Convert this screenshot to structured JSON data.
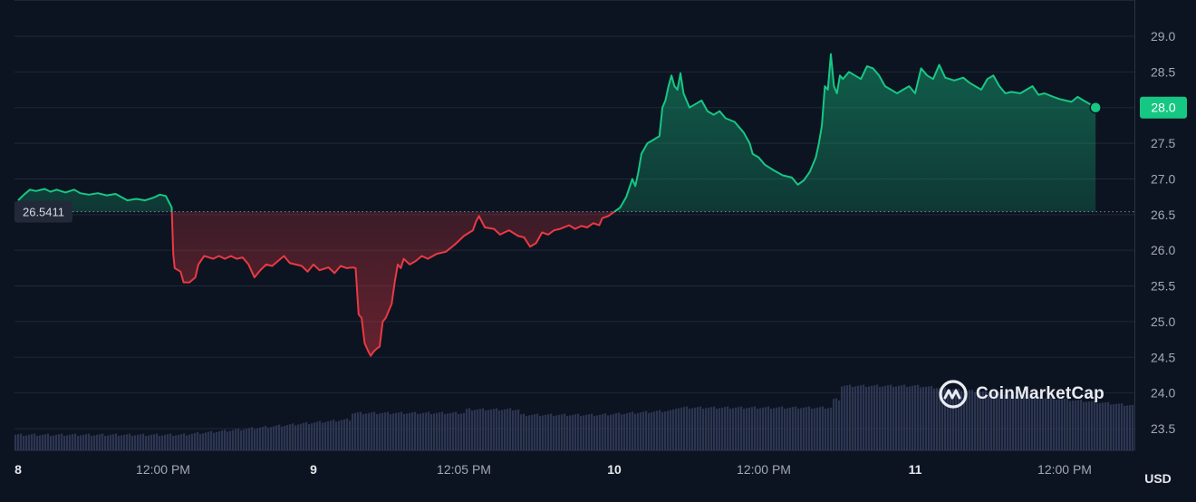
{
  "brand": {
    "name": "CoinMarketCap"
  },
  "currency_label": "USD",
  "colors": {
    "background": "#0d1421",
    "up": "#16c784",
    "down": "#ea3943",
    "grid": "#1f2637",
    "volume": "#323c5a",
    "axis_text": "#a1a7bb"
  },
  "chart_data": {
    "type": "area",
    "reference_value": "26.5411",
    "current_value": "28.0",
    "ylim": [
      23.2,
      29.3
    ],
    "y_ticks": [
      "29.0",
      "28.5",
      "28.0",
      "27.5",
      "27.0",
      "26.5",
      "26.0",
      "25.5",
      "25.0",
      "24.5",
      "24.0",
      "23.5"
    ],
    "x_tick_labels": [
      "8",
      "12:00 PM",
      "9",
      "12:05 PM",
      "10",
      "12:00 PM",
      "11",
      "12:00 PM"
    ],
    "grid": true,
    "series": [
      {
        "values": [
          [
            0.0,
            26.7
          ],
          [
            0.02,
            26.78
          ],
          [
            0.04,
            26.85
          ],
          [
            0.06,
            26.83
          ],
          [
            0.09,
            26.86
          ],
          [
            0.11,
            26.82
          ],
          [
            0.13,
            26.85
          ],
          [
            0.16,
            26.81
          ],
          [
            0.19,
            26.85
          ],
          [
            0.21,
            26.8
          ],
          [
            0.24,
            26.78
          ],
          [
            0.27,
            26.8
          ],
          [
            0.3,
            26.77
          ],
          [
            0.33,
            26.79
          ],
          [
            0.37,
            26.7
          ],
          [
            0.4,
            26.72
          ],
          [
            0.43,
            26.7
          ],
          [
            0.46,
            26.74
          ],
          [
            0.48,
            26.78
          ],
          [
            0.5,
            26.76
          ],
          [
            0.51,
            26.68
          ],
          [
            0.52,
            26.6
          ],
          [
            0.525,
            25.95
          ],
          [
            0.53,
            25.75
          ],
          [
            0.55,
            25.7
          ],
          [
            0.56,
            25.55
          ],
          [
            0.58,
            25.55
          ],
          [
            0.6,
            25.62
          ],
          [
            0.61,
            25.8
          ],
          [
            0.63,
            25.92
          ],
          [
            0.66,
            25.88
          ],
          [
            0.68,
            25.92
          ],
          [
            0.7,
            25.88
          ],
          [
            0.72,
            25.92
          ],
          [
            0.74,
            25.88
          ],
          [
            0.76,
            25.9
          ],
          [
            0.78,
            25.8
          ],
          [
            0.8,
            25.62
          ],
          [
            0.82,
            25.72
          ],
          [
            0.84,
            25.8
          ],
          [
            0.86,
            25.78
          ],
          [
            0.88,
            25.85
          ],
          [
            0.9,
            25.92
          ],
          [
            0.92,
            25.82
          ],
          [
            0.94,
            25.8
          ],
          [
            0.96,
            25.78
          ],
          [
            0.98,
            25.7
          ],
          [
            1.0,
            25.8
          ],
          [
            1.02,
            25.72
          ],
          [
            1.05,
            25.76
          ],
          [
            1.07,
            25.68
          ],
          [
            1.09,
            25.78
          ],
          [
            1.11,
            25.75
          ],
          [
            1.13,
            25.76
          ],
          [
            1.14,
            25.75
          ],
          [
            1.15,
            25.1
          ],
          [
            1.16,
            25.05
          ],
          [
            1.17,
            24.7
          ],
          [
            1.18,
            24.6
          ],
          [
            1.19,
            24.52
          ],
          [
            1.2,
            24.58
          ],
          [
            1.21,
            24.62
          ],
          [
            1.22,
            24.65
          ],
          [
            1.23,
            25.0
          ],
          [
            1.24,
            25.05
          ],
          [
            1.25,
            25.15
          ],
          [
            1.26,
            25.25
          ],
          [
            1.27,
            25.55
          ],
          [
            1.28,
            25.8
          ],
          [
            1.29,
            25.75
          ],
          [
            1.3,
            25.88
          ],
          [
            1.32,
            25.8
          ],
          [
            1.34,
            25.85
          ],
          [
            1.36,
            25.92
          ],
          [
            1.38,
            25.88
          ],
          [
            1.41,
            25.95
          ],
          [
            1.44,
            25.98
          ],
          [
            1.47,
            26.08
          ],
          [
            1.5,
            26.2
          ],
          [
            1.53,
            26.28
          ],
          [
            1.54,
            26.4
          ],
          [
            1.55,
            26.48
          ],
          [
            1.57,
            26.32
          ],
          [
            1.6,
            26.3
          ],
          [
            1.62,
            26.22
          ],
          [
            1.65,
            26.28
          ],
          [
            1.68,
            26.2
          ],
          [
            1.7,
            26.18
          ],
          [
            1.72,
            26.05
          ],
          [
            1.74,
            26.1
          ],
          [
            1.76,
            26.25
          ],
          [
            1.78,
            26.22
          ],
          [
            1.8,
            26.28
          ],
          [
            1.82,
            26.3
          ],
          [
            1.85,
            26.35
          ],
          [
            1.87,
            26.3
          ],
          [
            1.89,
            26.34
          ],
          [
            1.91,
            26.32
          ],
          [
            1.93,
            26.38
          ],
          [
            1.95,
            26.35
          ],
          [
            1.96,
            26.45
          ],
          [
            1.98,
            26.48
          ],
          [
            2.0,
            26.54
          ],
          [
            2.02,
            26.6
          ],
          [
            2.04,
            26.75
          ],
          [
            2.06,
            27.0
          ],
          [
            2.07,
            26.9
          ],
          [
            2.08,
            27.1
          ],
          [
            2.09,
            27.35
          ],
          [
            2.11,
            27.5
          ],
          [
            2.13,
            27.55
          ],
          [
            2.15,
            27.6
          ],
          [
            2.16,
            28.0
          ],
          [
            2.17,
            28.1
          ],
          [
            2.18,
            28.3
          ],
          [
            2.19,
            28.45
          ],
          [
            2.2,
            28.3
          ],
          [
            2.21,
            28.25
          ],
          [
            2.22,
            28.48
          ],
          [
            2.23,
            28.2
          ],
          [
            2.25,
            28.0
          ],
          [
            2.27,
            28.05
          ],
          [
            2.29,
            28.1
          ],
          [
            2.31,
            27.95
          ],
          [
            2.33,
            27.9
          ],
          [
            2.35,
            27.95
          ],
          [
            2.37,
            27.85
          ],
          [
            2.4,
            27.8
          ],
          [
            2.43,
            27.65
          ],
          [
            2.45,
            27.5
          ],
          [
            2.46,
            27.35
          ],
          [
            2.48,
            27.3
          ],
          [
            2.5,
            27.2
          ],
          [
            2.53,
            27.12
          ],
          [
            2.56,
            27.05
          ],
          [
            2.59,
            27.02
          ],
          [
            2.61,
            26.92
          ],
          [
            2.63,
            26.98
          ],
          [
            2.65,
            27.1
          ],
          [
            2.67,
            27.3
          ],
          [
            2.68,
            27.5
          ],
          [
            2.69,
            27.75
          ],
          [
            2.7,
            28.3
          ],
          [
            2.71,
            28.25
          ],
          [
            2.72,
            28.75
          ],
          [
            2.73,
            28.3
          ],
          [
            2.74,
            28.2
          ],
          [
            2.75,
            28.45
          ],
          [
            2.76,
            28.4
          ],
          [
            2.78,
            28.5
          ],
          [
            2.8,
            28.45
          ],
          [
            2.82,
            28.4
          ],
          [
            2.84,
            28.58
          ],
          [
            2.86,
            28.55
          ],
          [
            2.88,
            28.45
          ],
          [
            2.9,
            28.3
          ],
          [
            2.92,
            28.25
          ],
          [
            2.94,
            28.2
          ],
          [
            2.96,
            28.25
          ],
          [
            2.98,
            28.3
          ],
          [
            3.0,
            28.2
          ],
          [
            3.02,
            28.55
          ],
          [
            3.04,
            28.45
          ],
          [
            3.06,
            28.4
          ],
          [
            3.08,
            28.6
          ],
          [
            3.1,
            28.42
          ],
          [
            3.13,
            28.38
          ],
          [
            3.16,
            28.42
          ],
          [
            3.18,
            28.35
          ],
          [
            3.2,
            28.3
          ],
          [
            3.22,
            28.25
          ],
          [
            3.24,
            28.4
          ],
          [
            3.26,
            28.45
          ],
          [
            3.28,
            28.3
          ],
          [
            3.3,
            28.2
          ],
          [
            3.32,
            28.22
          ],
          [
            3.35,
            28.2
          ],
          [
            3.37,
            28.25
          ],
          [
            3.39,
            28.3
          ],
          [
            3.41,
            28.18
          ],
          [
            3.43,
            28.2
          ],
          [
            3.46,
            28.15
          ],
          [
            3.48,
            28.12
          ],
          [
            3.5,
            28.1
          ],
          [
            3.52,
            28.08
          ],
          [
            3.54,
            28.15
          ],
          [
            3.56,
            28.1
          ],
          [
            3.58,
            28.05
          ],
          [
            3.6,
            28.0
          ]
        ]
      }
    ]
  }
}
